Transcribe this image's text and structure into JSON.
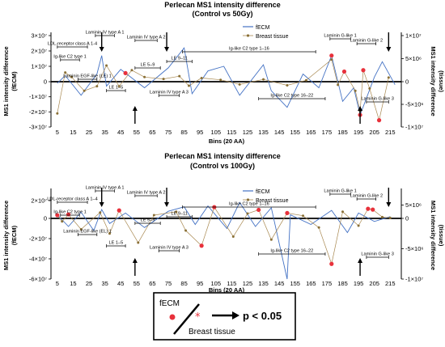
{
  "chart_data": [
    {
      "type": "line",
      "title": "Perlecan MS1 intensity difference",
      "subtitle": "(Control vs 50Gy)",
      "xlabel": "Bins (20 AA)",
      "ylabel_left": [
        "MS1 intensity difference",
        "(fECM)"
      ],
      "ylabel_right": [
        "MS1 intensity difference",
        "(tissue)"
      ],
      "xlim": [
        1,
        222
      ],
      "ylim_left": [
        -30000000,
        30000000
      ],
      "ylim_right": [
        -10000000,
        10000000
      ],
      "x_ticks": [
        "5",
        "15",
        "25",
        "35",
        "45",
        "55",
        "65",
        "75",
        "85",
        "95",
        "105",
        "115",
        "125",
        "135",
        "145",
        "155",
        "165",
        "175",
        "185",
        "195",
        "205",
        "215"
      ],
      "y_ticks_left": [
        {
          "value": 30000000,
          "label": "3×10⁷"
        },
        {
          "value": 20000000,
          "label": "2×10⁷"
        },
        {
          "value": 10000000,
          "label": "1×10⁷"
        },
        {
          "value": 0,
          "label": "0"
        },
        {
          "value": -10000000,
          "label": "-1×10⁷"
        },
        {
          "value": -20000000,
          "label": "-2×10⁷"
        },
        {
          "value": -30000000,
          "label": "-3×10⁷"
        }
      ],
      "y_ticks_right": [
        {
          "value": 10000000,
          "label": "1×10⁷"
        },
        {
          "value": 5000000,
          "label": "5×10⁶"
        },
        {
          "value": 0,
          "label": "0"
        },
        {
          "value": -5000000,
          "label": "-5×10⁶"
        },
        {
          "value": -10000000,
          "label": "-1×10⁷"
        }
      ],
      "legend": [
        "fECM",
        "Breast tissue"
      ],
      "legend_position": "top-center",
      "series": [
        {
          "name": "fECM",
          "axis": "left",
          "x": [
            5,
            10,
            20,
            30,
            33,
            36,
            45,
            60,
            75,
            85,
            90,
            100,
            110,
            120,
            135,
            140,
            150,
            160,
            170,
            178,
            185,
            192,
            196,
            205,
            210,
            218
          ],
          "y": [
            -1000000,
            4000000,
            -9000000,
            5000000,
            17000000,
            -3000000,
            8000000,
            -4000000,
            9000000,
            22000000,
            -8000000,
            7000000,
            10000000,
            -9000000,
            11000000,
            -6000000,
            -17000000,
            5000000,
            -4000000,
            17000000,
            -13000000,
            -4000000,
            -22000000,
            3000000,
            13000000,
            -2000000
          ]
        },
        {
          "name": "Breast tissue",
          "axis": "right",
          "x": [
            5,
            10,
            14,
            22,
            30,
            36,
            44,
            52,
            60,
            72,
            82,
            88,
            96,
            108,
            120,
            135,
            150,
            162,
            178,
            182,
            186,
            193,
            196,
            198,
            202,
            208,
            214
          ],
          "y": [
            -7000000,
            2000000,
            1000000,
            -2000000,
            -1000000,
            3500000,
            -1000000,
            2500000,
            1000000,
            600000,
            1200000,
            -900000,
            800000,
            400000,
            -600000,
            500000,
            -800000,
            300000,
            4800000,
            -700000,
            2200000,
            -2000000,
            -6500000,
            2500000,
            -1500000,
            -8500000,
            900000
          ]
        }
      ],
      "significant_fecm_x": [
        48,
        178,
        196
      ],
      "significant_tissue_x": [
        186,
        198,
        208
      ],
      "annotations": [
        {
          "text": "LDL-receptor class A 1-4",
          "bins": [
            5,
            24
          ]
        },
        {
          "text": "Ig-like C2 type 1",
          "bins": [
            7,
            19
          ]
        },
        {
          "text": "Laminin EGF-like (LE) 1",
          "bins": [
            18,
            30
          ]
        },
        {
          "text": "Laminin IV type A 1",
          "bins": [
            29,
            41
          ]
        },
        {
          "text": "LE 1–5",
          "bins": [
            36,
            48
          ]
        },
        {
          "text": "Laminin IV type A 2",
          "bins": [
            54,
            68
          ]
        },
        {
          "text": "LE 5–9",
          "bins": [
            54,
            70
          ]
        },
        {
          "text": "LE 9–11",
          "bins": [
            74,
            90
          ]
        },
        {
          "text": "Laminin IV type A 3",
          "bins": [
            69,
            82
          ]
        },
        {
          "text": "Ig-like C2 type 1–16",
          "bins": [
            84,
            168
          ]
        },
        {
          "text": "Ig-like C2 type 16–22",
          "bins": [
            132,
            174
          ]
        },
        {
          "text": "Laminin G-like 1",
          "bins": [
            177,
            190
          ]
        },
        {
          "text": "Laminin G-like 2",
          "bins": [
            194,
            206
          ]
        },
        {
          "text": "Laminin G-like 3",
          "bins": [
            200,
            214
          ]
        }
      ]
    },
    {
      "type": "line",
      "title": "Perlecan MS1 intensity difference",
      "subtitle": "(Control vs 100Gy)",
      "xlabel": "Bins (20 AA)",
      "ylabel_left": [
        "MS1 intensity difference",
        "(fECM)"
      ],
      "ylabel_right": [
        "MS1 intensity difference",
        "(tissue)"
      ],
      "xlim": [
        1,
        222
      ],
      "ylim_left": [
        -60000000,
        30000000
      ],
      "ylim_right": [
        -10000000,
        10000000
      ],
      "x_ticks": [
        "5",
        "15",
        "25",
        "35",
        "45",
        "55",
        "65",
        "75",
        "85",
        "95",
        "105",
        "115",
        "125",
        "135",
        "145",
        "155",
        "165",
        "175",
        "185",
        "195",
        "205",
        "215"
      ],
      "y_ticks_left": [
        {
          "value": 20000000,
          "label": "2×10⁷"
        },
        {
          "value": 0,
          "label": "0"
        },
        {
          "value": -20000000,
          "label": "-2×10⁷"
        },
        {
          "value": -40000000,
          "label": "-4×10⁷"
        },
        {
          "value": -60000000,
          "label": "-6×10⁷"
        }
      ],
      "y_ticks_right": [
        {
          "value": 5000000,
          "label": "5×10⁶"
        },
        {
          "value": 0,
          "label": "0"
        },
        {
          "value": -5000000,
          "label": "-5×10⁶"
        },
        {
          "value": -10000000,
          "label": "-1×10⁷"
        }
      ],
      "legend": [
        "fECM",
        "Breast tissue"
      ],
      "legend_position": "top-center",
      "series": [
        {
          "name": "fECM",
          "axis": "left",
          "x": [
            5,
            12,
            20,
            28,
            33,
            38,
            48,
            60,
            75,
            85,
            92,
            100,
            112,
            120,
            130,
            140,
            150,
            152,
            165,
            178,
            188,
            195,
            205,
            215
          ],
          "y": [
            4000000,
            -8000000,
            7000000,
            -12000000,
            10000000,
            -5000000,
            6000000,
            -9000000,
            8000000,
            13000000,
            -6000000,
            14000000,
            -10000000,
            18000000,
            -8000000,
            12000000,
            -60000000,
            4000000,
            -6000000,
            9000000,
            -14000000,
            6000000,
            -3000000,
            2000000
          ]
        },
        {
          "name": "Breast tissue",
          "axis": "right",
          "x": [
            5,
            8,
            12,
            20,
            32,
            38,
            44,
            56,
            66,
            80,
            86,
            96,
            104,
            116,
            125,
            132,
            140,
            150,
            160,
            170,
            178,
            185,
            195,
            201,
            204,
            210,
            215
          ],
          "y": [
            1200000,
            -500000,
            1500000,
            -1800000,
            2200000,
            -2500000,
            3000000,
            -4000000,
            1200000,
            2500000,
            -2000000,
            -4500000,
            4200000,
            -3000000,
            1800000,
            3200000,
            -3500000,
            2000000,
            1000000,
            -1500000,
            -7500000,
            2500000,
            -1200000,
            3600000,
            3300000,
            500000,
            200000
          ]
        }
      ],
      "significant_fecm_x": [],
      "significant_tissue_x": [
        5,
        12,
        44,
        96,
        104,
        132,
        150,
        178,
        201,
        204
      ],
      "annotations": [
        {
          "text": "LDL-receptor class A 1–4",
          "bins": [
            5,
            24
          ]
        },
        {
          "text": "Ig-like C2 type 1",
          "bins": [
            7,
            19
          ]
        },
        {
          "text": "Laminin EGF-like (EL) 1",
          "bins": [
            18,
            30
          ]
        },
        {
          "text": "Laminin IV type A 1",
          "bins": [
            29,
            41
          ]
        },
        {
          "text": "LE 1–5",
          "bins": [
            36,
            48
          ]
        },
        {
          "text": "Laminin IV type A 2",
          "bins": [
            54,
            68
          ]
        },
        {
          "text": "LE 5–9",
          "bins": [
            54,
            70
          ]
        },
        {
          "text": "LE 9–11",
          "bins": [
            74,
            90
          ]
        },
        {
          "text": "Laminin IV type A 3",
          "bins": [
            69,
            82
          ]
        },
        {
          "text": "Ig-like C2 type 1–16",
          "bins": [
            84,
            168
          ]
        },
        {
          "text": "Ig-like C2 type 16–22",
          "bins": [
            132,
            174
          ]
        },
        {
          "text": "Laminin G-like 1",
          "bins": [
            177,
            190
          ]
        },
        {
          "text": "Laminin G-like 2",
          "bins": [
            194,
            206
          ]
        },
        {
          "text": "Laminin G-like 3",
          "bins": [
            200,
            214
          ]
        }
      ]
    }
  ],
  "key": {
    "label_fecm": "fECM",
    "label_tissue": "Breast tissue",
    "label_p": "p < 0.05",
    "color_fecm_significant": "#e8313b",
    "color_tissue_significant": "#e8313b"
  },
  "colors": {
    "fecm_line": "#4472c4",
    "tissue_line": "#a88850",
    "tissue_marker": "#8a7036",
    "significant": "#e8313b",
    "axis": "#000000"
  }
}
